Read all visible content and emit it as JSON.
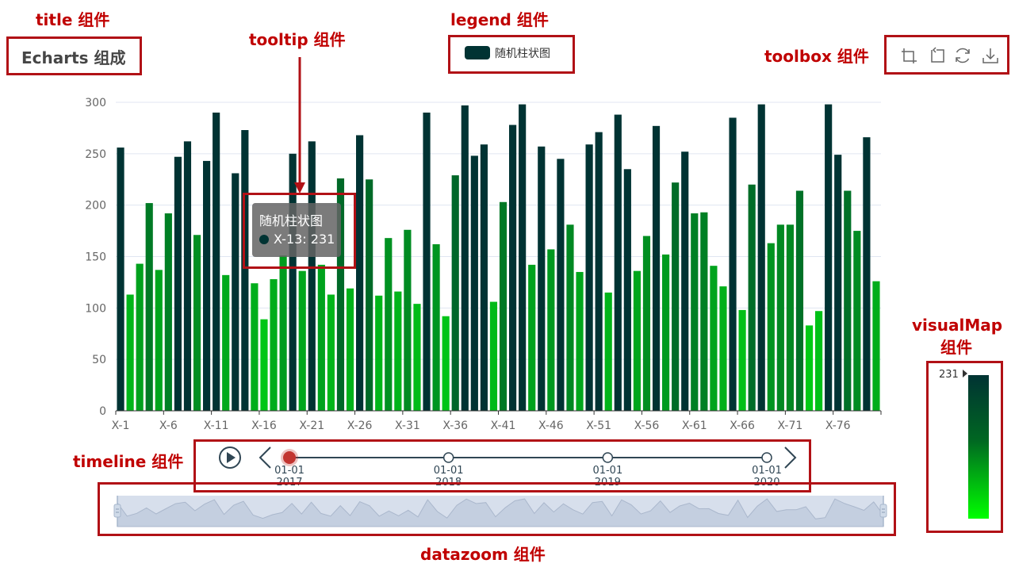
{
  "annotations": {
    "title": "title 组件",
    "legend": "legend 组件",
    "tooltip": "tooltip 组件",
    "toolbox": "toolbox 组件",
    "visualmap_line1": "visualMap",
    "visualmap_line2": "组件",
    "timeline": "timeline 组件",
    "datazoom": "datazoom 组件"
  },
  "chart_title": "Echarts 组成",
  "legend": {
    "label": "随机柱状图",
    "color": "#003333"
  },
  "toolbox": {
    "icons": [
      "zoom-select-icon",
      "zoom-back-icon",
      "restore-icon",
      "save-as-image-icon"
    ],
    "color": "#666666"
  },
  "tooltip": {
    "title": "随机柱状图",
    "label": "X-13: 231",
    "color": "#003333"
  },
  "visual_map": {
    "max_label": "231",
    "colors": [
      "#003333",
      "#00ff00"
    ],
    "range": [
      0,
      231
    ]
  },
  "timeline": {
    "points": [
      {
        "line1": "01-01",
        "line2": "2017",
        "active": true
      },
      {
        "line1": "01-01",
        "line2": "2018",
        "active": false
      },
      {
        "line1": "01-01",
        "line2": "2019",
        "active": false
      },
      {
        "line1": "01-01",
        "line2": "2020",
        "active": false
      }
    ],
    "active_color": "#c23531",
    "line_color": "#304654"
  },
  "chart_data": {
    "type": "bar",
    "series": [
      {
        "name": "随机柱状图",
        "values": [
          256,
          113,
          143,
          202,
          137,
          192,
          247,
          262,
          171,
          243,
          290,
          132,
          231,
          273,
          124,
          89,
          128,
          151,
          250,
          136,
          262,
          142,
          113,
          226,
          119,
          268,
          225,
          112,
          168,
          116,
          176,
          104,
          290,
          162,
          92,
          229,
          297,
          248,
          259,
          106,
          203,
          278,
          298,
          142,
          257,
          157,
          245,
          181,
          135,
          259,
          271,
          115,
          288,
          235,
          136,
          170,
          277,
          152,
          222,
          252,
          192,
          193,
          141,
          121,
          285,
          98,
          220,
          298,
          163,
          181,
          181,
          214,
          83,
          97,
          298,
          249,
          214,
          175,
          266,
          126
        ]
      }
    ],
    "categories_shown": [
      "X-1",
      "X-6",
      "X-11",
      "X-16",
      "X-21",
      "X-26",
      "X-31",
      "X-36",
      "X-41",
      "X-46",
      "X-51",
      "X-56",
      "X-61",
      "X-66",
      "X-71",
      "X-76"
    ],
    "category_prefix": "X-",
    "ylim": [
      0,
      300
    ],
    "yticks": [
      "0",
      "50",
      "100",
      "150",
      "200",
      "250",
      "300"
    ],
    "grid": true,
    "visual_threshold": 231
  }
}
